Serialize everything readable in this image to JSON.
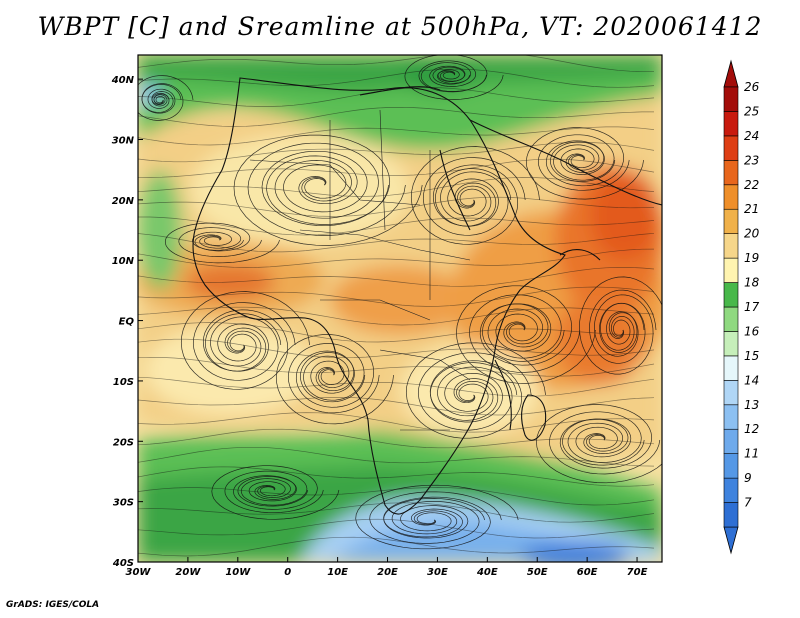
{
  "title": "WBPT [C] and Sreamline at 500hPa, VT: 2020061412",
  "credit": "GrADS: IGES/COLA",
  "map": {
    "lon_labels": [
      "30W",
      "20W",
      "10W",
      "0",
      "10E",
      "20E",
      "30E",
      "40E",
      "50E",
      "60E",
      "70E"
    ],
    "lat_labels": [
      "40N",
      "30N",
      "20N",
      "10N",
      "EQ",
      "10S",
      "20S",
      "30S",
      "40S"
    ],
    "lon_range": [
      -30,
      75
    ],
    "lat_range": [
      -40,
      44
    ]
  },
  "colorbar": {
    "labels": [
      "7",
      "9",
      "11",
      "12",
      "13",
      "14",
      "15",
      "16",
      "17",
      "18",
      "19",
      "20",
      "21",
      "22",
      "23",
      "24",
      "25",
      "26"
    ],
    "colors": [
      "#2e6fd4",
      "#3f83de",
      "#5598e6",
      "#6eaaec",
      "#8cc0f2",
      "#b0d6f6",
      "#e6f7fb",
      "#c6efba",
      "#8fd980",
      "#48b84a",
      "#fff4b0",
      "#f6d68a",
      "#f0b14a",
      "#ef8f2a",
      "#e8661c",
      "#de3e14",
      "#c81a0e",
      "#a30d0a"
    ]
  }
}
